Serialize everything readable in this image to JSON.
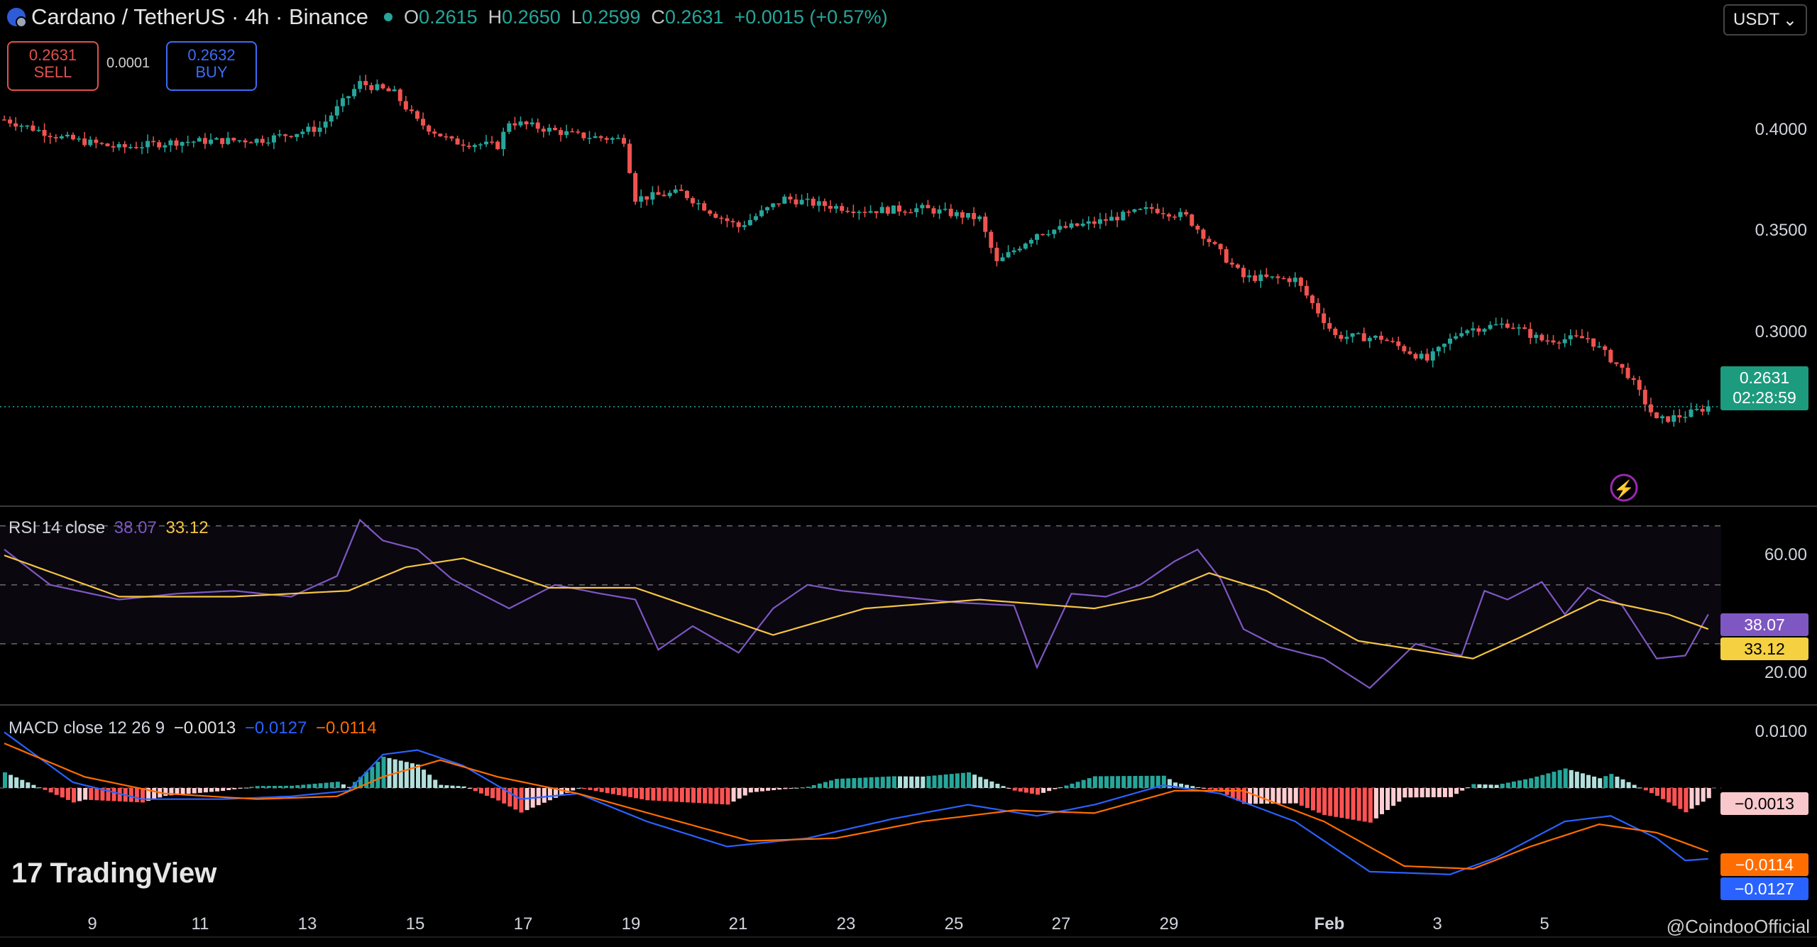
{
  "header": {
    "title": "Cardano / TetherUS · 4h · Binance",
    "open_label": "O",
    "open": "0.2615",
    "high_label": "H",
    "high": "0.2650",
    "low_label": "L",
    "low": "0.2599",
    "close_label": "C",
    "close": "0.2631",
    "change": "+0.0015 (+0.57%)"
  },
  "trade": {
    "sell_price": "0.2631",
    "sell_label": "SELL",
    "spread": "0.0001",
    "buy_price": "0.2632",
    "buy_label": "BUY"
  },
  "currency_select": "USDT",
  "last_price": {
    "price": "0.2631",
    "countdown": "02:28:59"
  },
  "rsi": {
    "label": "RSI 14 close",
    "value": "38.07",
    "ma": "33.12"
  },
  "macd": {
    "label": "MACD close 12 26 9",
    "hist": "−0.0013",
    "macd": "−0.0127",
    "signal": "−0.0114"
  },
  "branding": {
    "logo": "TradingView",
    "watermark": "@CoindooOfficial"
  },
  "colors": {
    "up": "#26a69a",
    "down": "#ef5350",
    "rsi": "#7e57c2",
    "rsi_ma": "#f5c542",
    "macd": "#2962ff",
    "signal": "#ff6d00"
  },
  "chart_data": [
    {
      "type": "candlestick",
      "title": "Cardano / TetherUS · 4h · Binance",
      "x_ticks": [
        "9",
        "11",
        "13",
        "15",
        "17",
        "19",
        "21",
        "23",
        "25",
        "27",
        "29",
        "Feb",
        "3",
        "5"
      ],
      "y_ticks": [
        "0.4000",
        "0.3500",
        "0.3000"
      ],
      "ylim": [
        0.215,
        0.45
      ],
      "last_price": 0.2631,
      "close_path": [
        [
          0,
          0.405
        ],
        [
          10,
          0.396
        ],
        [
          20,
          0.391
        ],
        [
          30,
          0.394
        ],
        [
          45,
          0.395
        ],
        [
          55,
          0.401
        ],
        [
          62,
          0.423
        ],
        [
          68,
          0.418
        ],
        [
          72,
          0.404
        ],
        [
          78,
          0.394
        ],
        [
          86,
          0.392
        ],
        [
          88,
          0.404
        ],
        [
          100,
          0.397
        ],
        [
          108,
          0.395
        ],
        [
          110,
          0.366
        ],
        [
          118,
          0.369
        ],
        [
          124,
          0.358
        ],
        [
          128,
          0.352
        ],
        [
          136,
          0.366
        ],
        [
          142,
          0.363
        ],
        [
          150,
          0.36
        ],
        [
          160,
          0.361
        ],
        [
          170,
          0.356
        ],
        [
          173,
          0.334
        ],
        [
          180,
          0.349
        ],
        [
          190,
          0.354
        ],
        [
          200,
          0.361
        ],
        [
          206,
          0.357
        ],
        [
          210,
          0.345
        ],
        [
          216,
          0.327
        ],
        [
          225,
          0.326
        ],
        [
          232,
          0.298
        ],
        [
          240,
          0.297
        ],
        [
          248,
          0.286
        ],
        [
          254,
          0.301
        ],
        [
          262,
          0.304
        ],
        [
          268,
          0.296
        ],
        [
          276,
          0.297
        ],
        [
          283,
          0.279
        ],
        [
          288,
          0.256
        ],
        [
          293,
          0.259
        ],
        [
          297,
          0.2631
        ]
      ]
    },
    {
      "type": "line",
      "title": "RSI 14 close",
      "y_ticks": [
        "60.00",
        "20.00"
      ],
      "ylim": [
        10,
        75
      ],
      "bands": [
        70,
        50,
        30
      ],
      "series": [
        {
          "name": "RSI",
          "points": [
            [
              0,
              62
            ],
            [
              8,
              50
            ],
            [
              20,
              45
            ],
            [
              30,
              47
            ],
            [
              40,
              48
            ],
            [
              50,
              46
            ],
            [
              58,
              53
            ],
            [
              62,
              72
            ],
            [
              66,
              65
            ],
            [
              72,
              62
            ],
            [
              78,
              52
            ],
            [
              88,
              42
            ],
            [
              96,
              50
            ],
            [
              104,
              47
            ],
            [
              110,
              45
            ],
            [
              114,
              28
            ],
            [
              120,
              36
            ],
            [
              128,
              27
            ],
            [
              134,
              42
            ],
            [
              140,
              50
            ],
            [
              146,
              48
            ],
            [
              156,
              46
            ],
            [
              166,
              44
            ],
            [
              176,
              43
            ],
            [
              180,
              22
            ],
            [
              186,
              47
            ],
            [
              192,
              46
            ],
            [
              198,
              50
            ],
            [
              204,
              58
            ],
            [
              208,
              62
            ],
            [
              212,
              52
            ],
            [
              216,
              35
            ],
            [
              222,
              29
            ],
            [
              230,
              25
            ],
            [
              238,
              15
            ],
            [
              246,
              30
            ],
            [
              254,
              26
            ],
            [
              258,
              48
            ],
            [
              262,
              45
            ],
            [
              268,
              51
            ],
            [
              272,
              40
            ],
            [
              276,
              49
            ],
            [
              282,
              43
            ],
            [
              288,
              25
            ],
            [
              293,
              26
            ],
            [
              297,
              40
            ]
          ]
        },
        {
          "name": "RSI MA",
          "points": [
            [
              0,
              60
            ],
            [
              20,
              46
            ],
            [
              40,
              46
            ],
            [
              60,
              48
            ],
            [
              70,
              56
            ],
            [
              80,
              59
            ],
            [
              95,
              49
            ],
            [
              110,
              49
            ],
            [
              134,
              33
            ],
            [
              150,
              42
            ],
            [
              170,
              45
            ],
            [
              190,
              42
            ],
            [
              200,
              46
            ],
            [
              210,
              54
            ],
            [
              220,
              48
            ],
            [
              236,
              31
            ],
            [
              256,
              25
            ],
            [
              264,
              32
            ],
            [
              278,
              45
            ],
            [
              290,
              40
            ],
            [
              297,
              35
            ]
          ]
        }
      ]
    },
    {
      "type": "line",
      "title": "MACD close 12 26 9",
      "y_ticks": [
        "0.0100"
      ],
      "ylim": [
        -0.021,
        0.014
      ],
      "series": [
        {
          "name": "MACD",
          "points": [
            [
              0,
              0.01
            ],
            [
              12,
              0.001
            ],
            [
              24,
              -0.002
            ],
            [
              38,
              -0.002
            ],
            [
              50,
              -0.0015
            ],
            [
              60,
              -0.0005
            ],
            [
              66,
              0.006
            ],
            [
              72,
              0.0068
            ],
            [
              80,
              0.004
            ],
            [
              90,
              -0.002
            ],
            [
              100,
              -0.001
            ],
            [
              112,
              -0.006
            ],
            [
              126,
              -0.0105
            ],
            [
              140,
              -0.009
            ],
            [
              155,
              -0.0055
            ],
            [
              168,
              -0.003
            ],
            [
              180,
              -0.005
            ],
            [
              190,
              -0.003
            ],
            [
              202,
              0.0005
            ],
            [
              212,
              -0.001
            ],
            [
              225,
              -0.006
            ],
            [
              238,
              -0.015
            ],
            [
              252,
              -0.0155
            ],
            [
              260,
              -0.0125
            ],
            [
              272,
              -0.006
            ],
            [
              280,
              -0.005
            ],
            [
              288,
              -0.009
            ],
            [
              293,
              -0.013
            ],
            [
              297,
              -0.0127
            ]
          ]
        },
        {
          "name": "Signal",
          "points": [
            [
              0,
              0.008
            ],
            [
              14,
              0.002
            ],
            [
              28,
              -0.001
            ],
            [
              44,
              -0.002
            ],
            [
              58,
              -0.0015
            ],
            [
              66,
              0.002
            ],
            [
              76,
              0.005
            ],
            [
              86,
              0.002
            ],
            [
              100,
              -0.001
            ],
            [
              114,
              -0.005
            ],
            [
              130,
              -0.0095
            ],
            [
              145,
              -0.009
            ],
            [
              160,
              -0.006
            ],
            [
              176,
              -0.004
            ],
            [
              190,
              -0.0045
            ],
            [
              204,
              -0.0005
            ],
            [
              216,
              -0.0005
            ],
            [
              230,
              -0.006
            ],
            [
              244,
              -0.014
            ],
            [
              256,
              -0.0145
            ],
            [
              266,
              -0.0105
            ],
            [
              278,
              -0.0065
            ],
            [
              288,
              -0.008
            ],
            [
              297,
              -0.0114
            ]
          ]
        }
      ]
    }
  ],
  "x_labels": [
    "9",
    "11",
    "13",
    "15",
    "17",
    "19",
    "21",
    "23",
    "25",
    "27",
    "29",
    "Feb",
    "3",
    "5"
  ]
}
